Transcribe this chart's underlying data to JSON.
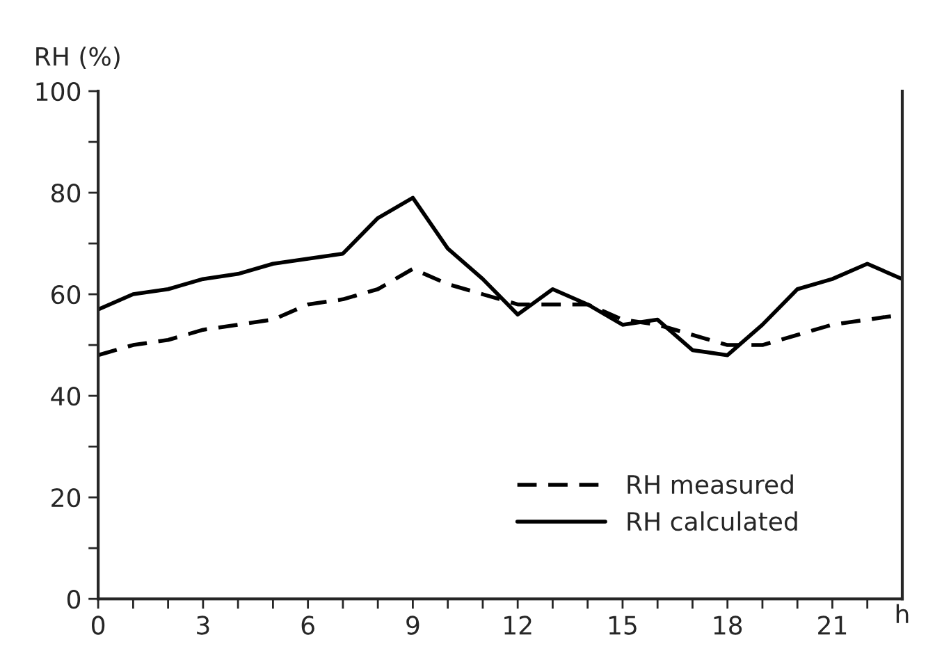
{
  "chart_data": {
    "type": "line",
    "ylabel": "RH (%)",
    "xlabel": "h",
    "x": [
      0,
      1,
      2,
      3,
      4,
      5,
      6,
      7,
      8,
      9,
      10,
      11,
      12,
      13,
      14,
      15,
      16,
      17,
      18,
      19,
      20,
      21,
      22,
      23
    ],
    "series": [
      {
        "name": "RH measured",
        "color": "#000000",
        "line_style": "dashed",
        "values": [
          48,
          50,
          51,
          53,
          54,
          55,
          58,
          59,
          61,
          65,
          62,
          60,
          58,
          58,
          58,
          55,
          54,
          52,
          50,
          50,
          52,
          54,
          55,
          56
        ]
      },
      {
        "name": "RH calculated",
        "color": "#000000",
        "line_style": "solid",
        "values": [
          57,
          60,
          61,
          63,
          64,
          66,
          67,
          68,
          75,
          79,
          69,
          63,
          56,
          61,
          58,
          54,
          55,
          49,
          48,
          54,
          61,
          63,
          66,
          63
        ]
      }
    ],
    "xlim": [
      0,
      23
    ],
    "xticks": [
      0,
      {
        "value": 1,
        "label": null
      },
      {
        "value": 2,
        "label": null
      },
      3,
      {
        "value": 4,
        "label": null
      },
      {
        "value": 5,
        "label": null
      },
      6,
      {
        "value": 7,
        "label": null
      },
      {
        "value": 8,
        "label": null
      },
      9,
      {
        "value": 10,
        "label": null
      },
      {
        "value": 11,
        "label": null
      },
      12,
      {
        "value": 13,
        "label": null
      },
      {
        "value": 14,
        "label": null
      },
      15,
      {
        "value": 16,
        "label": null
      },
      {
        "value": 17,
        "label": null
      },
      18,
      {
        "value": 19,
        "label": null
      },
      {
        "value": 20,
        "label": null
      },
      21,
      {
        "value": 22,
        "label": null
      }
    ],
    "ylim": [
      0,
      100
    ],
    "yticks": [
      0,
      {
        "value": 10,
        "label": null
      },
      20,
      {
        "value": 30,
        "label": null
      },
      40,
      {
        "value": 50,
        "label": null
      },
      60,
      {
        "value": 70,
        "label": null
      },
      80,
      {
        "value": 90,
        "label": null
      },
      100
    ],
    "grid": false,
    "legend": "bottom right",
    "marker": "none"
  }
}
